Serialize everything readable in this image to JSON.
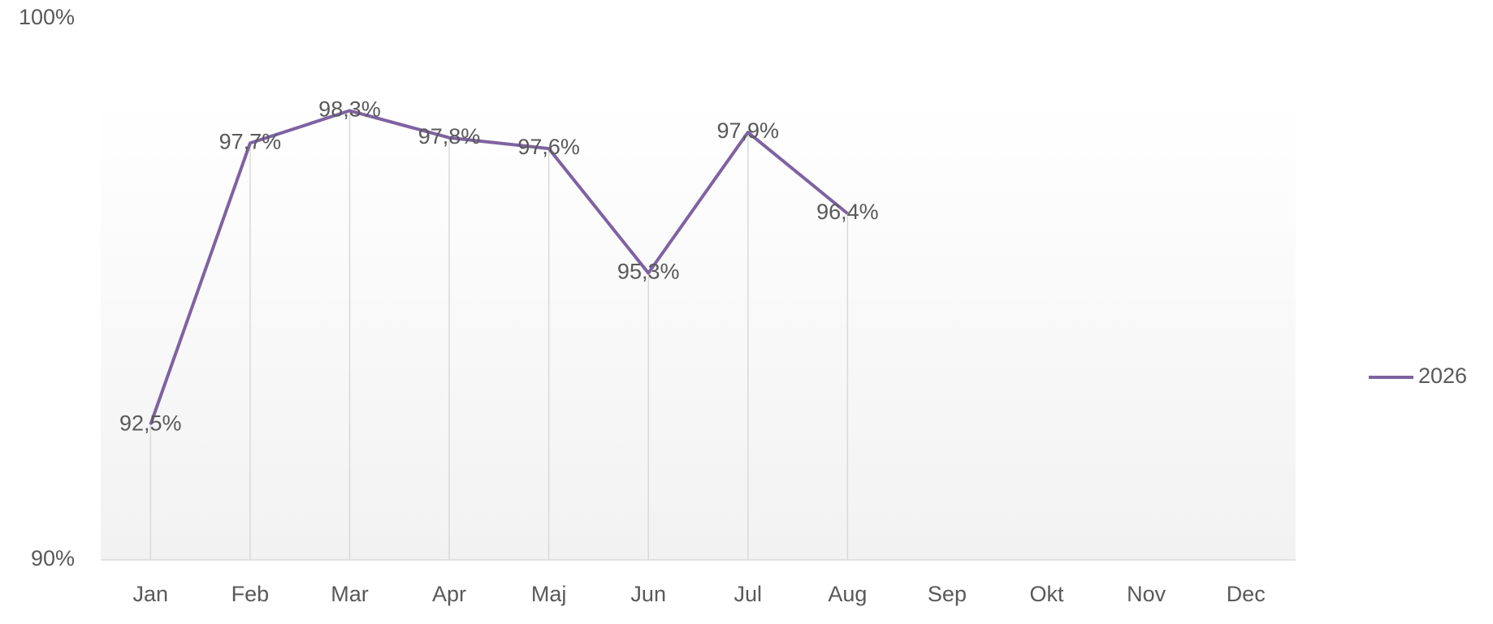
{
  "chart_data": {
    "type": "line",
    "categories": [
      "Jan",
      "Feb",
      "Mar",
      "Apr",
      "Maj",
      "Jun",
      "Jul",
      "Aug",
      "Sep",
      "Okt",
      "Nov",
      "Dec"
    ],
    "series": [
      {
        "name": "2026",
        "color": "#7e62a1",
        "values": [
          92.5,
          97.7,
          98.3,
          97.8,
          97.6,
          95.3,
          97.9,
          96.4,
          null,
          null,
          null,
          null
        ],
        "value_labels": [
          "92,5%",
          "97,7%",
          "98,3%",
          "97,8%",
          "97,6%",
          "95,3%",
          "97,9%",
          "96,4%",
          null,
          null,
          null,
          null
        ]
      }
    ],
    "ylim": [
      90,
      100
    ],
    "yticks": [
      {
        "value": 90,
        "label": "90%"
      },
      {
        "value": 100,
        "label": "100%"
      }
    ],
    "drop_lines": true,
    "legend": "right"
  }
}
